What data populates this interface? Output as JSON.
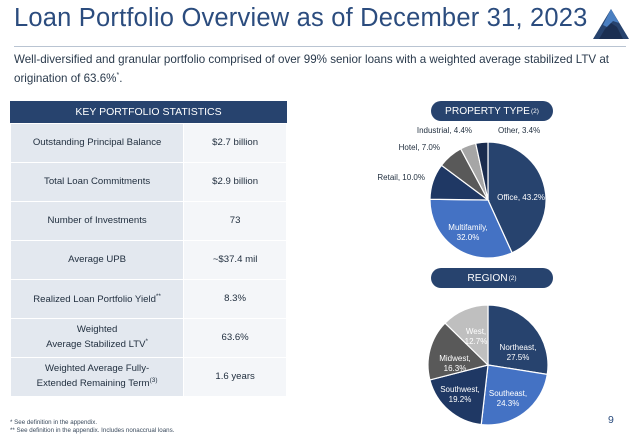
{
  "title": "Loan Portfolio Overview as of December 31, 2023",
  "subtitle": {
    "text": "Well-diversified and granular portfolio comprised of over 99% senior loans with a weighted average stabilized LTV at origination of 63.6%",
    "marker": "*",
    "end": "."
  },
  "stats": {
    "header": "KEY PORTFOLIO STATISTICS",
    "rows": [
      {
        "label": "Outstanding Principal Balance",
        "value": "$2.7 billion"
      },
      {
        "label": "Total Loan Commitments",
        "value": "$2.9 billion"
      },
      {
        "label": "Number of Investments",
        "value": "73"
      },
      {
        "label": "Average UPB",
        "value": "~$37.4 mil"
      },
      {
        "label": "Realized Loan Portfolio Yield",
        "label_sup": "**",
        "value": "8.3%"
      },
      {
        "label_line1": "Weighted",
        "label_line2": "Average Stabilized LTV",
        "label_sup": "*",
        "value": "63.6%"
      },
      {
        "label_line1": "Weighted Average Fully-",
        "label_line2": "Extended Remaining Term",
        "label_sup": "(3)",
        "value": "1.6 years"
      }
    ]
  },
  "property_type": {
    "title": "PROPERTY TYPE",
    "title_sup": "(2)"
  },
  "region": {
    "title": "REGION",
    "title_sup": "(2)"
  },
  "chart_data": [
    {
      "type": "pie",
      "title": "PROPERTY TYPE",
      "slices": [
        {
          "name": "Office",
          "label": "Office, 43.2%",
          "value": 43.2,
          "color": "#27436e"
        },
        {
          "name": "Multifamily",
          "label": "Multifamily, 32.0%",
          "value": 32.0,
          "color": "#4472c4"
        },
        {
          "name": "Retail",
          "label": "Retail, 10.0%",
          "value": 10.0,
          "color": "#1f3864"
        },
        {
          "name": "Hotel",
          "label": "Hotel, 7.0%",
          "value": 7.0,
          "color": "#595959"
        },
        {
          "name": "Industrial",
          "label": "Industrial, 4.4%",
          "value": 4.4,
          "color": "#a6a6a6"
        },
        {
          "name": "Other",
          "label": "Other, 3.4%",
          "value": 3.4,
          "color": "#1a2c4e"
        }
      ]
    },
    {
      "type": "pie",
      "title": "REGION",
      "slices": [
        {
          "name": "Northeast",
          "label": "Northeast, 27.5%",
          "value": 27.5,
          "color": "#27436e"
        },
        {
          "name": "Southeast",
          "label": "Southeast, 24.3%",
          "value": 24.3,
          "color": "#4472c4"
        },
        {
          "name": "Southwest",
          "label": "Southwest, 19.2%",
          "value": 19.2,
          "color": "#1f3864"
        },
        {
          "name": "Midwest",
          "label": "Midwest, 16.3%",
          "value": 16.3,
          "color": "#595959"
        },
        {
          "name": "West",
          "label": "West, 12.7%",
          "value": 12.7,
          "color": "#bfbfbf"
        }
      ]
    }
  ],
  "footnotes": [
    "* See definition in the appendix.",
    "** See definition in the appendix. Includes nonaccrual loans."
  ],
  "page_number": "9",
  "colors": {
    "navy": "#27436e",
    "title_blue": "#2b4c7e",
    "table_label_bg": "#e3e8ef",
    "table_value_bg": "#f4f6f9"
  }
}
